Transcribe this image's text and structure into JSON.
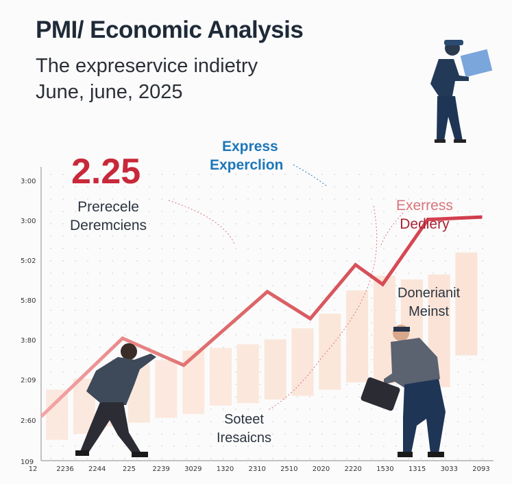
{
  "header": {
    "title": "PMI/ Economic Analysis",
    "subtitle": "The expreservice indietry",
    "date": "June, june, 2025"
  },
  "highlight": {
    "value": "2.25"
  },
  "annotations": {
    "left": [
      "Prerecele",
      "Deremciens"
    ],
    "top": [
      "Express",
      "Experclion"
    ],
    "right": [
      "Exerress",
      "Dediery"
    ],
    "mid_right": [
      "Donerianit",
      "Meinst"
    ],
    "bottom": [
      "Soteet",
      "Iresaicns"
    ]
  },
  "colors": {
    "line": "#d13a4a",
    "bar": "#fbe3d6",
    "accent_red": "#c8283a",
    "accent_blue": "#1c77b8"
  },
  "chart_data": {
    "type": "bar",
    "y_tick_labels": [
      "3:00",
      "3:00",
      "5:02",
      "5:80",
      "3:80",
      "2:09",
      "2:60",
      "109"
    ],
    "x_tick_labels": [
      "12",
      "2236",
      "2244",
      "225",
      "2239",
      "3029",
      "1320",
      "2310",
      "2510",
      "2020",
      "2220",
      "1530",
      "1315",
      "3033",
      "2093"
    ],
    "grid": "dotted",
    "bars": [
      {
        "low": 0.85,
        "high": 2.9
      },
      {
        "low": 1.1,
        "high": 3.35
      },
      {
        "low": 1.4,
        "high": 3.55
      },
      {
        "low": 1.55,
        "high": 3.95
      },
      {
        "low": 1.75,
        "high": 4.1
      },
      {
        "low": 1.9,
        "high": 4.5
      },
      {
        "low": 2.25,
        "high": 4.6
      },
      {
        "low": 2.35,
        "high": 4.75
      },
      {
        "low": 2.5,
        "high": 4.95
      },
      {
        "low": 2.65,
        "high": 5.4
      },
      {
        "low": 2.9,
        "high": 6.0
      },
      {
        "low": 3.2,
        "high": 6.95
      },
      {
        "low": 3.15,
        "high": 7.55
      },
      {
        "low": 3.4,
        "high": 7.4
      },
      {
        "low": 3.0,
        "high": 7.6
      },
      {
        "low": 4.3,
        "high": 8.5
      }
    ],
    "line": {
      "x": [
        0,
        3.6,
        6.3,
        10.0,
        11.9,
        13.9,
        15.1,
        17.1,
        19.5
      ],
      "y": [
        1.8,
        5.0,
        3.9,
        6.9,
        5.8,
        8.0,
        7.2,
        9.85,
        9.95
      ]
    },
    "ylim": [
      0,
      12
    ],
    "xlim": [
      0,
      20
    ]
  }
}
